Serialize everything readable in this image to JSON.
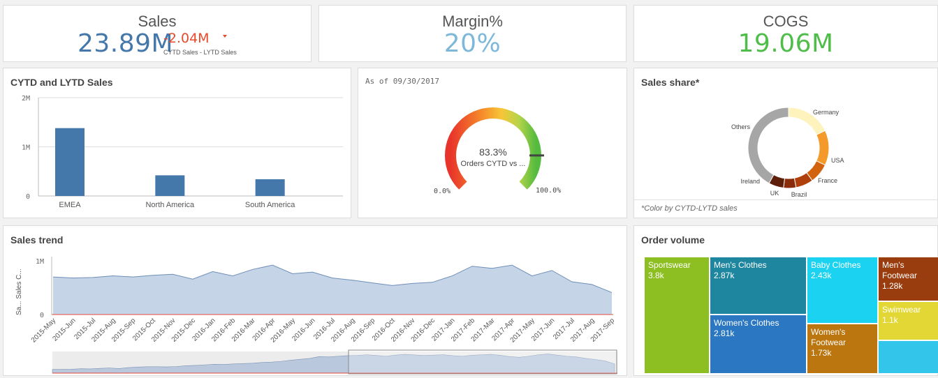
{
  "kpis": {
    "sales": {
      "title": "Sales",
      "value": "23.89M",
      "delta": "-2.04M",
      "delta_caption": "CYTD Sales - LYTD Sales",
      "color": "#4477aa",
      "delta_color": "#e8492b"
    },
    "margin": {
      "title": "Margin%",
      "value": "20%",
      "color": "#7db8da"
    },
    "cogs": {
      "title": "COGS",
      "value": "19.06M",
      "color": "#4fbd4a"
    }
  },
  "bar_panel": {
    "title": "CYTD and LYTD Sales",
    "chart_data": {
      "type": "bar",
      "categories": [
        "EMEA",
        "North America",
        "South America"
      ],
      "values": [
        1380000,
        420000,
        340000
      ],
      "ylim": [
        0,
        2000000
      ],
      "yticks": [
        "2M",
        "1M",
        "0"
      ],
      "color": "#4477aa"
    }
  },
  "gauge_panel": {
    "caption": "As of 09/30/2017",
    "value_label": "83.3%",
    "measure_label": "Orders CYTD vs ...",
    "min_label": "0.0%",
    "max_label": "100.0%",
    "value": 0.833
  },
  "donut_panel": {
    "title": "Sales share*",
    "footnote": "*Color by CYTD-LYTD sales",
    "chart_data": {
      "type": "pie",
      "slices": [
        {
          "label": "Germany",
          "value": 18,
          "color": "#fef3bd"
        },
        {
          "label": "USA",
          "value": 14,
          "color": "#f39a2a"
        },
        {
          "label": "France",
          "value": 8,
          "color": "#d2620e"
        },
        {
          "label": "Brazil",
          "value": 7,
          "color": "#b0400b"
        },
        {
          "label": "UK",
          "value": 5,
          "color": "#8a2c0a"
        },
        {
          "label": "Ireland",
          "value": 6,
          "color": "#5e1f0a"
        },
        {
          "label": "Others",
          "value": 42,
          "color": "#a6a6a6"
        }
      ]
    }
  },
  "trend_panel": {
    "title": "Sales trend",
    "y_axis_label": "Sa... Sales C...",
    "yticks": [
      "1M",
      "0"
    ],
    "chart_data": {
      "type": "area",
      "x": [
        "2015-May",
        "2015-Jun",
        "2015-Jul",
        "2015-Aug",
        "2015-Sep",
        "2015-Oct",
        "2015-Nov",
        "2015-Dec",
        "2016-Jan",
        "2016-Feb",
        "2016-Mar",
        "2016-Apr",
        "2016-May",
        "2016-Jun",
        "2016-Jul",
        "2016-Aug",
        "2016-Sep",
        "2016-Oct",
        "2016-Nov",
        "2016-Dec",
        "2017-Jan",
        "2017-Feb",
        "2017-Mar",
        "2017-Apr",
        "2017-May",
        "2017-Jun",
        "2017-Jul",
        "2017-Aug",
        "2017-Sep"
      ],
      "values": [
        700000,
        680000,
        690000,
        720000,
        700000,
        730000,
        750000,
        660000,
        800000,
        720000,
        840000,
        920000,
        760000,
        790000,
        680000,
        640000,
        590000,
        540000,
        580000,
        600000,
        720000,
        900000,
        860000,
        920000,
        720000,
        820000,
        610000,
        560000,
        410000
      ],
      "ylim": [
        0,
        1000000
      ],
      "fill": "#c5d4e6",
      "line": "#6f8fb8"
    },
    "minimap_values": [
      20,
      20,
      21,
      24,
      23,
      26,
      28,
      25,
      30,
      33,
      35,
      35,
      34,
      36,
      40,
      42,
      45,
      48,
      47,
      50,
      52,
      54,
      58,
      60,
      64,
      70,
      75,
      80,
      90,
      88,
      92,
      95,
      96,
      100,
      96,
      92,
      98,
      102,
      99,
      96,
      98,
      100,
      95,
      92,
      97,
      100,
      102,
      97,
      90,
      86,
      92,
      100,
      104,
      98,
      92,
      88,
      80,
      74,
      66,
      50
    ]
  },
  "treemap_panel": {
    "title": "Order volume",
    "cells": [
      {
        "label": "Sportswear",
        "value": "3.8k",
        "color": "#8dbe22"
      },
      {
        "label": "Men's Clothes",
        "value": "2.87k",
        "color": "#1f869f"
      },
      {
        "label": "Women's Clothes",
        "value": "2.81k",
        "color": "#2b77c2"
      },
      {
        "label": "Baby Clothes",
        "value": "2.43k",
        "color": "#1bd3f0"
      },
      {
        "label": "Women's Footwear",
        "value": "1.73k",
        "color": "#bb7610"
      },
      {
        "label": "Men's Footwear",
        "value": "1.28k",
        "color": "#9a3d0e"
      },
      {
        "label": "Swimwear",
        "value": "1.1k",
        "color": "#e3d735"
      },
      {
        "label": "",
        "value": "",
        "color": "#34c6ea"
      }
    ]
  }
}
